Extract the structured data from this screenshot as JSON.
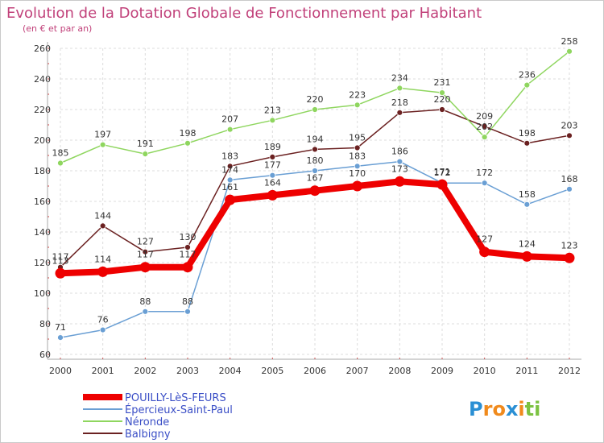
{
  "chart_data": {
    "type": "line",
    "title": "Evolution de la Dotation Globale de Fonctionnement par Habitant",
    "subtitle": "(en € et par an)",
    "xlabel": "",
    "ylabel": "",
    "x": [
      "2000",
      "2001",
      "2002",
      "2003",
      "2004",
      "2005",
      "2006",
      "2007",
      "2008",
      "2009",
      "2010",
      "2011",
      "2012"
    ],
    "ylim": [
      60,
      260
    ],
    "yticks": [
      60,
      80,
      100,
      120,
      140,
      160,
      180,
      200,
      220,
      240,
      260
    ],
    "grid": true,
    "legend_position": "bottom-left",
    "series": [
      {
        "name": "POUILLY-LèS-FEURS",
        "color": "#ee0000",
        "values": [
          113,
          114,
          117,
          117,
          161,
          164,
          167,
          170,
          173,
          171,
          127,
          124,
          123
        ]
      },
      {
        "name": "Épercieux-Saint-Paul",
        "color": "#6a9fd4",
        "values": [
          71,
          76,
          88,
          88,
          174,
          177,
          180,
          183,
          186,
          172,
          172,
          158,
          168
        ]
      },
      {
        "name": "Néronde",
        "color": "#8fd65f",
        "values": [
          185,
          197,
          191,
          198,
          207,
          213,
          220,
          223,
          234,
          231,
          202,
          236,
          258
        ]
      },
      {
        "name": "Balbigny",
        "color": "#6b2121",
        "values": [
          117,
          144,
          127,
          130,
          183,
          189,
          194,
          195,
          218,
          220,
          209,
          198,
          203
        ]
      }
    ]
  },
  "logo": {
    "text": "Proxiti",
    "letters": [
      "P",
      "r",
      "o",
      "x",
      "i",
      "t",
      "i"
    ],
    "colors": [
      "#2a8fd4",
      "#f08a1c",
      "#f08a1c",
      "#2a8fd4",
      "#f08a1c",
      "#7cc242",
      "#7cc242"
    ]
  }
}
